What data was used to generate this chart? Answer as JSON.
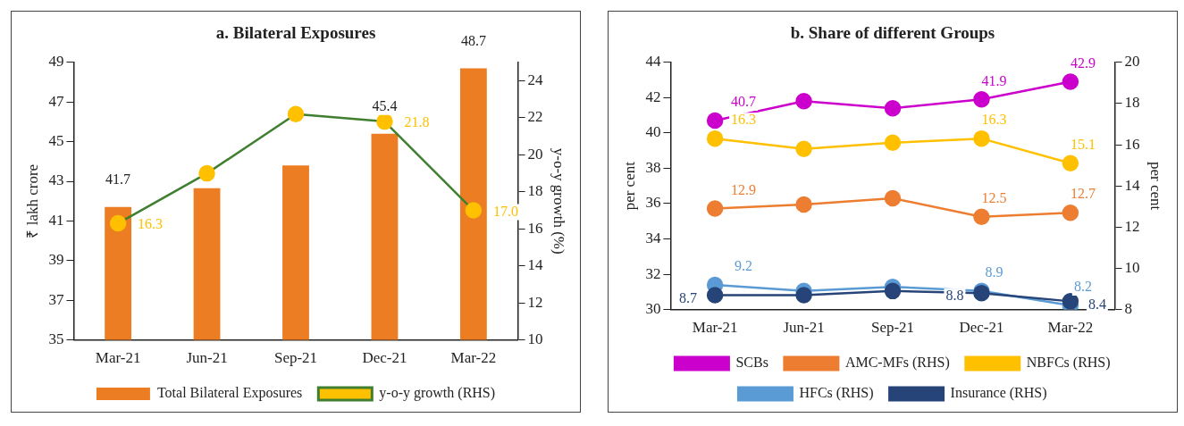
{
  "chart_data": [
    {
      "type": "bar",
      "title": "a. Bilateral Exposures",
      "ylabel": "₹ lakh crore",
      "y2label": "y-o-y growth (%)",
      "categories": [
        "Mar-21",
        "Jun-21",
        "Sep-21",
        "Dec-21",
        "Mar-22"
      ],
      "ylim": [
        35,
        49
      ],
      "yticks": [
        35,
        37,
        39,
        41,
        43,
        45,
        47,
        49
      ],
      "y2lim": [
        10,
        25
      ],
      "y2ticks": [
        10,
        12,
        14,
        16,
        18,
        20,
        22,
        24
      ],
      "legend": "bottom",
      "grid": false,
      "series": [
        {
          "name": "Total Bilateral Exposures",
          "color": "#ed7d22",
          "values": [
            41.7,
            42.65,
            43.8,
            45.4,
            48.7
          ],
          "value_labels": [
            "41.7",
            null,
            null,
            "45.4",
            "48.7"
          ]
        },
        {
          "name": "y-o-y growth (RHS)",
          "type": "line",
          "axis": "y2",
          "color": "#3f7f2f",
          "colors": [
            "#ffc000",
            "#ffc000",
            "#ffc000",
            "#ffc000",
            "#ffc000"
          ],
          "marker": "circle",
          "values": [
            16.3,
            19.0,
            22.2,
            21.8,
            17.0
          ],
          "value_labels": [
            "16.3",
            null,
            null,
            "21.8",
            "17.0"
          ]
        }
      ]
    },
    {
      "type": "line",
      "title": "b. Share of different Groups",
      "ylabel": "per cent",
      "y2label": "per cent",
      "categories": [
        "Mar-21",
        "Jun-21",
        "Sep-21",
        "Dec-21",
        "Mar-22"
      ],
      "ylim": [
        30,
        44
      ],
      "yticks": [
        30,
        32,
        34,
        36,
        38,
        40,
        42,
        44
      ],
      "y2lim": [
        8,
        20
      ],
      "y2ticks": [
        8,
        10,
        12,
        14,
        16,
        18,
        20
      ],
      "legend": "bottom",
      "grid": false,
      "marker": "circle",
      "series": [
        {
          "name": "SCBs",
          "color": "#cc00cc",
          "values": [
            40.7,
            41.8,
            41.4,
            41.9,
            42.9
          ],
          "value_labels": [
            "40.7",
            null,
            null,
            "41.9",
            "42.9"
          ]
        },
        {
          "name": "AMC-MFs (RHS)",
          "axis": "y2",
          "color": "#ed7d31",
          "values": [
            12.9,
            13.1,
            13.4,
            12.5,
            12.7
          ],
          "value_labels": [
            "12.9",
            null,
            null,
            "12.5",
            "12.7"
          ]
        },
        {
          "name": "NBFCs (RHS)",
          "axis": "y2",
          "color": "#ffc000",
          "values": [
            16.3,
            15.8,
            16.1,
            16.3,
            15.1
          ],
          "value_labels": [
            "16.3",
            null,
            null,
            "16.3",
            "15.1"
          ]
        },
        {
          "name": "HFCs (RHS)",
          "axis": "y2",
          "color": "#5b9bd5",
          "values": [
            9.2,
            8.9,
            9.1,
            8.9,
            8.2
          ],
          "value_labels": [
            "9.2",
            null,
            null,
            "8.9",
            "8.2"
          ]
        },
        {
          "name": "Insurance (RHS)",
          "axis": "y2",
          "color": "#264478",
          "values": [
            8.7,
            8.7,
            8.9,
            8.8,
            8.4
          ],
          "value_labels": [
            "8.7",
            null,
            null,
            "8.8",
            "8.4"
          ]
        }
      ]
    }
  ]
}
